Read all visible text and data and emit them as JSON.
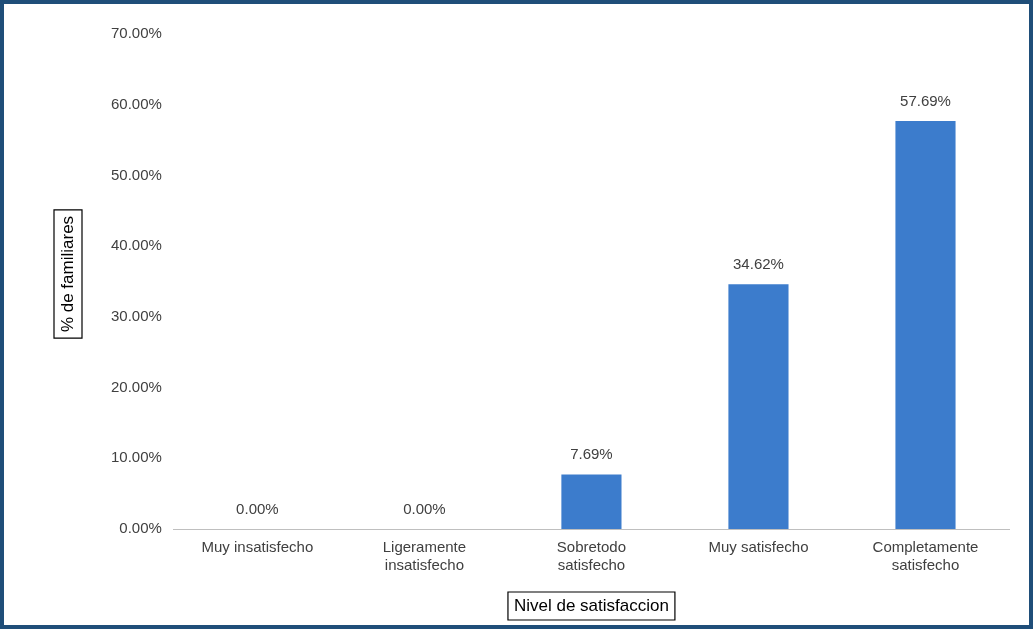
{
  "chart_data": {
    "type": "bar",
    "xlabel": "Nivel de satisfaccion",
    "ylabel": "% de familiares",
    "categories": [
      "Muy insatisfecho",
      "Ligeramente insatisfecho",
      "Sobretodo satisfecho",
      "Muy satisfecho",
      "Completamente satisfecho"
    ],
    "values": [
      0,
      0,
      7.69,
      34.62,
      57.69
    ],
    "value_labels": [
      "0.00%",
      "0.00%",
      "7.69%",
      "34.62%",
      "57.69%"
    ],
    "color": "#3c7ccc",
    "ylim": [
      0,
      70
    ],
    "yticks": [
      {
        "value": 0,
        "label": "0.00%"
      },
      {
        "value": 10,
        "label": "10.00%"
      },
      {
        "value": 20,
        "label": "20.00%"
      },
      {
        "value": 30,
        "label": "30.00%"
      },
      {
        "value": 40,
        "label": "40.00%"
      },
      {
        "value": 50,
        "label": "50.00%"
      },
      {
        "value": 60,
        "label": "60.00%"
      },
      {
        "value": 70,
        "label": "70.00%"
      }
    ],
    "grid": false
  }
}
